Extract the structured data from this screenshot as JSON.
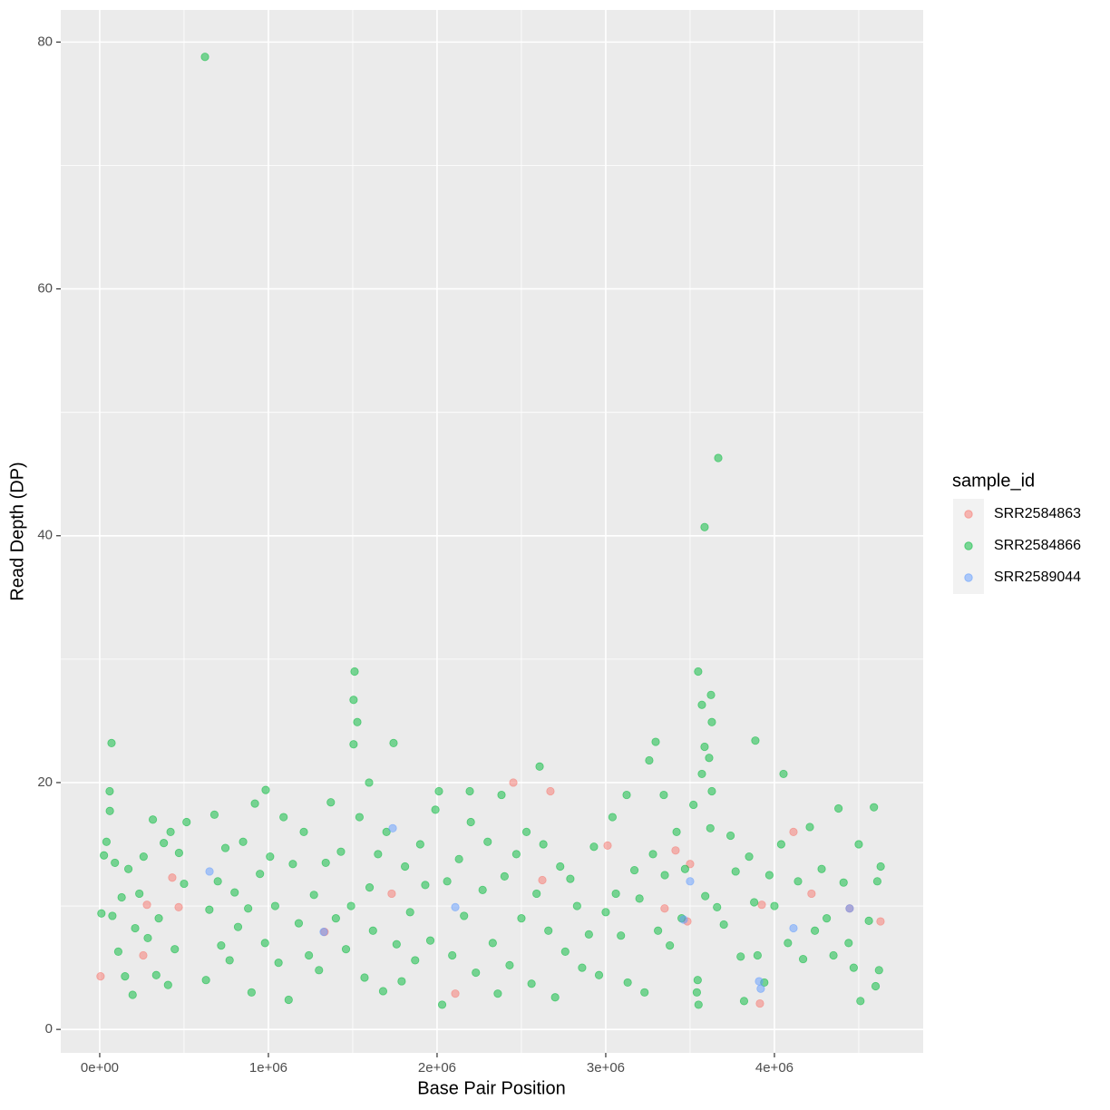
{
  "chart_data": {
    "type": "scatter",
    "x_label": "Base Pair Position",
    "y_label": "Read Depth (DP)",
    "legend_title": "sample_id",
    "legend_position": "right",
    "grid": true,
    "xlim": [
      -231000,
      4882000
    ],
    "ylim": [
      -1.9,
      82.6
    ],
    "xticks": [
      {
        "value": 0,
        "label": "0e+00"
      },
      {
        "value": 1000000,
        "label": "1e+06"
      },
      {
        "value": 2000000,
        "label": "2e+06"
      },
      {
        "value": 3000000,
        "label": "3e+06"
      },
      {
        "value": 4000000,
        "label": "4e+06"
      }
    ],
    "yticks": [
      0,
      20,
      40,
      60,
      80
    ],
    "series": [
      {
        "name": "SRR2584863",
        "color": "#F8766D",
        "x": [
          5000,
          280000,
          258000,
          430000,
          468000,
          1333000,
          1731000,
          2108000,
          2452000,
          2624000,
          2672000,
          3011000,
          3349000,
          3414000,
          3500000,
          3484000,
          3925000,
          3914000,
          4113000,
          4220000,
          4446000,
          4629000
        ],
        "values": [
          4.3,
          10.1,
          6.0,
          12.3,
          9.9,
          7.9,
          11.0,
          2.9,
          20.0,
          12.1,
          19.3,
          14.9,
          9.8,
          14.5,
          13.4,
          8.75,
          10.1,
          2.1,
          16.0,
          11.0,
          9.8,
          8.75
        ]
      },
      {
        "name": "SRR2584866",
        "color": "#00BA38",
        "x": [
          624000,
          3667000,
          3586000,
          1511000,
          1505000,
          1527000,
          1505000,
          1742000,
          70000,
          3548000,
          3624000,
          3570000,
          3629000,
          3586000,
          3296000,
          3258000,
          3887000,
          3613000,
          3570000,
          4054000,
          2608000,
          59000,
          984000,
          1597000,
          2011000,
          2194000,
          2382000,
          3124000,
          3344000,
          3629000,
          10000,
          25000,
          40000,
          60000,
          75000,
          90000,
          110000,
          130000,
          150000,
          170000,
          195000,
          210000,
          235000,
          260000,
          285000,
          315000,
          335000,
          350000,
          380000,
          405000,
          420000,
          445000,
          470000,
          500000,
          515000,
          630000,
          650000,
          680000,
          700000,
          720000,
          745000,
          770000,
          800000,
          820000,
          850000,
          880000,
          900000,
          920000,
          950000,
          980000,
          1010000,
          1040000,
          1060000,
          1090000,
          1120000,
          1145000,
          1180000,
          1210000,
          1240000,
          1270000,
          1300000,
          1340000,
          1370000,
          1400000,
          1430000,
          1460000,
          1490000,
          1540000,
          1570000,
          1600000,
          1620000,
          1650000,
          1680000,
          1700000,
          1760000,
          1790000,
          1810000,
          1840000,
          1870000,
          1900000,
          1930000,
          1960000,
          1990000,
          2030000,
          2060000,
          2090000,
          2130000,
          2160000,
          2200000,
          2230000,
          2270000,
          2300000,
          2330000,
          2360000,
          2400000,
          2430000,
          2470000,
          2500000,
          2530000,
          2560000,
          2590000,
          2630000,
          2660000,
          2700000,
          2730000,
          2760000,
          2790000,
          2830000,
          2860000,
          2900000,
          2930000,
          2960000,
          3000000,
          3040000,
          3060000,
          3090000,
          3130000,
          3170000,
          3200000,
          3230000,
          3280000,
          3310000,
          3350000,
          3380000,
          3420000,
          3450000,
          3470000,
          3520000,
          3540000,
          3545000,
          3550000,
          3590000,
          3620000,
          3660000,
          3700000,
          3740000,
          3770000,
          3800000,
          3820000,
          3850000,
          3880000,
          3900000,
          3940000,
          3970000,
          4000000,
          4040000,
          4080000,
          4140000,
          4170000,
          4210000,
          4240000,
          4280000,
          4310000,
          4350000,
          4380000,
          4410000,
          4440000,
          4470000,
          4500000,
          4510000,
          4560000,
          4590000,
          4600000,
          4610000,
          4620000,
          4630000
        ],
        "values": [
          78.8,
          46.3,
          40.7,
          29.0,
          26.7,
          24.9,
          23.1,
          23.2,
          23.2,
          29.0,
          27.1,
          26.3,
          24.9,
          22.9,
          23.3,
          21.8,
          23.4,
          22.0,
          20.7,
          20.7,
          21.3,
          19.3,
          19.4,
          20.0,
          19.3,
          19.3,
          19.0,
          19.0,
          19.0,
          19.3,
          9.4,
          14.1,
          15.2,
          17.7,
          9.2,
          13.5,
          6.3,
          10.7,
          4.3,
          13.0,
          2.8,
          8.2,
          11.0,
          14.0,
          7.4,
          17.0,
          4.4,
          9.0,
          15.1,
          3.6,
          16.0,
          6.5,
          14.3,
          11.8,
          16.8,
          4.0,
          9.7,
          17.4,
          12.0,
          6.8,
          14.7,
          5.6,
          11.1,
          8.3,
          15.2,
          9.8,
          3.0,
          18.3,
          12.6,
          7.0,
          14.0,
          10.0,
          5.4,
          17.2,
          2.4,
          13.4,
          8.6,
          16.0,
          6.0,
          10.9,
          4.8,
          13.5,
          18.4,
          9.0,
          14.4,
          6.5,
          10.0,
          17.2,
          4.2,
          11.5,
          8.0,
          14.2,
          3.1,
          16.0,
          6.9,
          3.9,
          13.2,
          9.5,
          5.6,
          15.0,
          11.7,
          7.2,
          17.8,
          2.0,
          12.0,
          6.0,
          13.8,
          9.2,
          16.8,
          4.6,
          11.3,
          15.2,
          7.0,
          2.9,
          12.4,
          5.2,
          14.2,
          9.0,
          16.0,
          3.7,
          11.0,
          15.0,
          8.0,
          2.6,
          13.2,
          6.3,
          12.2,
          10.0,
          5.0,
          7.7,
          14.8,
          4.4,
          9.5,
          17.2,
          11.0,
          7.6,
          3.8,
          12.9,
          10.6,
          3.0,
          14.2,
          8.0,
          12.5,
          6.8,
          16.0,
          9.0,
          13.0,
          18.2,
          3.0,
          4.0,
          2.0,
          10.8,
          16.3,
          9.9,
          8.5,
          15.7,
          12.8,
          5.9,
          2.3,
          14.0,
          10.3,
          6.0,
          3.8,
          12.5,
          10.0,
          15.0,
          7.0,
          12.0,
          5.7,
          16.4,
          8.0,
          13.0,
          9.0,
          6.0,
          17.9,
          11.9,
          7.0,
          5.0,
          15.0,
          2.3,
          8.8,
          18.0,
          3.5,
          12.0,
          4.8,
          13.2
        ]
      },
      {
        "name": "SRR2589044",
        "color": "#619CFF",
        "x": [
          651000,
          1737000,
          2108000,
          1328000,
          3462000,
          3500000,
          3909000,
          3919000,
          4113000,
          4446000
        ],
        "values": [
          12.8,
          16.3,
          9.9,
          7.9,
          8.9,
          12.0,
          3.9,
          3.3,
          8.2,
          9.8
        ]
      }
    ]
  }
}
